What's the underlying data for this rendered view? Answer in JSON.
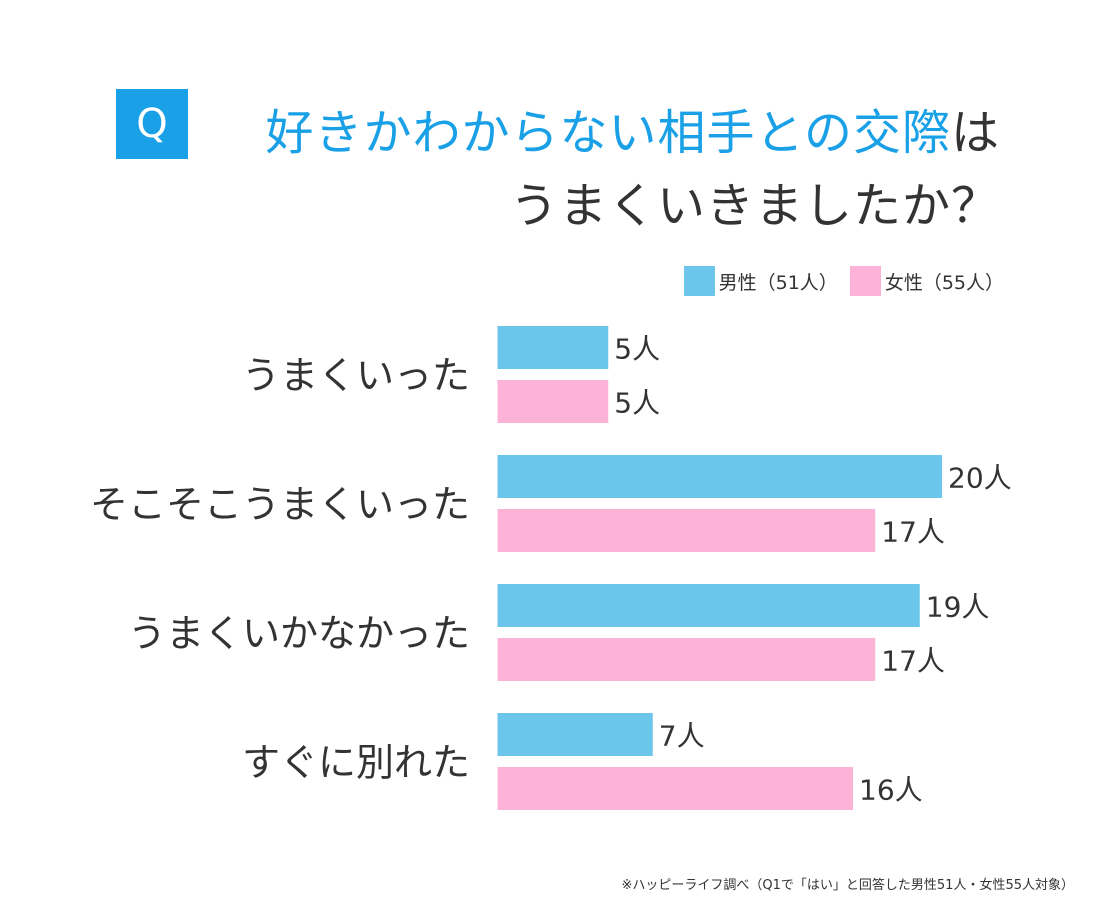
{
  "header": {
    "badge": "Q",
    "title_accent": "好きかわからない相手との交際",
    "title_tail": "は",
    "title_line2": "うまくいきましたか？"
  },
  "legend": {
    "male_label": "男性（51人）",
    "female_label": "女性（55人）"
  },
  "colors": {
    "accent": "#1aa0e6",
    "male": "#6cc6ec",
    "female": "#fdb3d7"
  },
  "chart_data": {
    "type": "bar",
    "orientation": "horizontal",
    "categories": [
      "うまくいった",
      "そこそこうまくいった",
      "うまくいかなかった",
      "すぐに別れた"
    ],
    "series": [
      {
        "name": "男性（51人）",
        "values": [
          5,
          20,
          19,
          7
        ],
        "labels": [
          "5人",
          "20人",
          "19人",
          "7人"
        ]
      },
      {
        "name": "女性（55人）",
        "values": [
          5,
          17,
          17,
          16
        ],
        "labels": [
          "5人",
          "17人",
          "17人",
          "16人"
        ]
      }
    ],
    "title": "好きかわからない相手との交際はうまくいきましたか？",
    "xlim": [
      0,
      20
    ],
    "xlabel": "",
    "ylabel": ""
  },
  "footnote": "※ハッピーライフ調べ（Q1で「はい」と回答した男性51人・女性55人対象）"
}
